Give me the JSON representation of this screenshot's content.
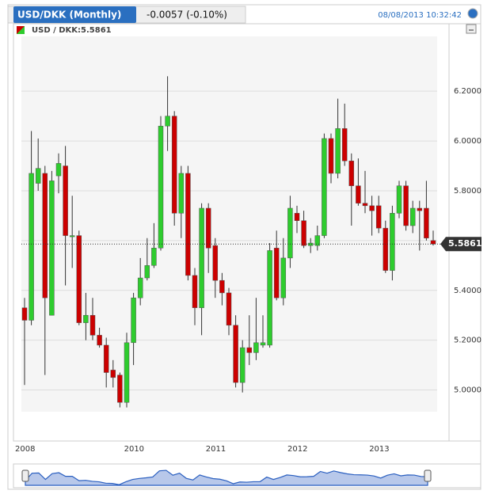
{
  "chart_data": {
    "type": "candlestick",
    "title": "USD/DKK (Monthly)",
    "change": "-0.0057 (-0.10%)",
    "timestamp": "08/08/2013 10:32:42",
    "legend": "USD / DKK:5.5861",
    "last_price": 5.5861,
    "up_color": "#2ecc2e",
    "down_color": "#cc0000",
    "categories": [
      "2008",
      null,
      null,
      null,
      null,
      null,
      null,
      null,
      null,
      null,
      null,
      null,
      null,
      null,
      null,
      null,
      "2010",
      null,
      null,
      null,
      null,
      null,
      null,
      null,
      null,
      null,
      null,
      null,
      "2011",
      null,
      null,
      null,
      null,
      null,
      null,
      null,
      null,
      null,
      null,
      null,
      "2012",
      null,
      null,
      null,
      null,
      null,
      null,
      null,
      null,
      null,
      null,
      null,
      "2013",
      null,
      null,
      null,
      null,
      null,
      null,
      null,
      null
    ],
    "open": [
      5.33,
      5.28,
      5.83,
      5.87,
      5.3,
      5.86,
      5.9,
      5.62,
      5.62,
      5.27,
      5.3,
      5.22,
      5.18,
      5.08,
      5.06,
      4.95,
      5.19,
      5.37,
      5.45,
      5.5,
      5.57,
      6.06,
      6.1,
      5.71,
      5.87,
      5.46,
      5.33,
      5.73,
      5.58,
      5.44,
      5.39,
      5.26,
      5.03,
      5.17,
      5.15,
      5.18,
      5.18,
      5.57,
      5.37,
      5.53,
      5.71,
      5.68,
      5.58,
      5.58,
      5.62,
      6.01,
      5.87,
      6.05,
      5.92,
      5.82,
      5.75,
      5.74,
      5.74,
      5.65,
      5.48,
      5.71,
      5.82,
      5.66,
      5.73,
      5.73,
      5.6
    ],
    "high": [
      5.37,
      6.04,
      6.01,
      5.9,
      5.88,
      5.95,
      5.98,
      5.78,
      5.64,
      5.39,
      5.37,
      5.25,
      5.21,
      5.12,
      5.07,
      5.23,
      5.39,
      5.53,
      5.61,
      5.67,
      6.1,
      6.26,
      6.12,
      5.9,
      5.9,
      5.49,
      5.75,
      5.75,
      5.61,
      5.47,
      5.41,
      5.3,
      5.2,
      5.3,
      5.37,
      5.3,
      5.59,
      5.64,
      5.61,
      5.78,
      5.74,
      5.72,
      5.61,
      5.66,
      6.03,
      6.03,
      6.17,
      6.15,
      5.95,
      5.93,
      5.88,
      5.78,
      5.78,
      5.68,
      5.74,
      5.84,
      5.84,
      5.76,
      5.76,
      5.84,
      5.64
    ],
    "low": [
      5.02,
      5.26,
      5.8,
      5.06,
      5.3,
      5.79,
      5.42,
      5.49,
      5.26,
      5.2,
      5.2,
      5.17,
      5.01,
      5.01,
      4.93,
      4.93,
      5.1,
      5.34,
      5.44,
      5.49,
      5.56,
      5.96,
      5.66,
      5.61,
      5.44,
      5.26,
      5.22,
      5.47,
      5.37,
      5.34,
      5.22,
      5.01,
      4.99,
      5.1,
      5.12,
      5.17,
      5.17,
      5.36,
      5.34,
      5.49,
      5.63,
      5.57,
      5.55,
      5.56,
      5.61,
      5.83,
      5.85,
      5.9,
      5.66,
      5.74,
      5.71,
      5.62,
      5.63,
      5.47,
      5.44,
      5.69,
      5.64,
      5.63,
      5.56,
      5.6,
      5.58
    ],
    "close": [
      5.28,
      5.87,
      5.89,
      5.37,
      5.84,
      5.91,
      5.62,
      5.62,
      5.27,
      5.3,
      5.22,
      5.18,
      5.07,
      5.05,
      4.95,
      5.19,
      5.37,
      5.45,
      5.5,
      5.57,
      6.06,
      6.1,
      5.71,
      5.87,
      5.46,
      5.33,
      5.73,
      5.57,
      5.44,
      5.39,
      5.26,
      5.03,
      5.17,
      5.15,
      5.19,
      5.19,
      5.56,
      5.37,
      5.53,
      5.73,
      5.68,
      5.58,
      5.59,
      5.62,
      6.01,
      5.87,
      6.05,
      5.92,
      5.82,
      5.75,
      5.74,
      5.72,
      5.65,
      5.48,
      5.71,
      5.82,
      5.66,
      5.73,
      5.72,
      5.61,
      5.5861
    ],
    "ylim": [
      4.9,
      6.42
    ],
    "yticks": [
      {
        "value": 5.0,
        "label": "5.0000"
      },
      {
        "value": 5.2,
        "label": "5.2000"
      },
      {
        "value": 5.4,
        "label": "5.4000"
      },
      {
        "value": 5.6,
        "label": "5.6000"
      },
      {
        "value": 5.8,
        "label": "5.8000"
      },
      {
        "value": 6.0,
        "label": "6.0000"
      },
      {
        "value": 6.2,
        "label": "6.2000"
      }
    ],
    "grid": true
  }
}
